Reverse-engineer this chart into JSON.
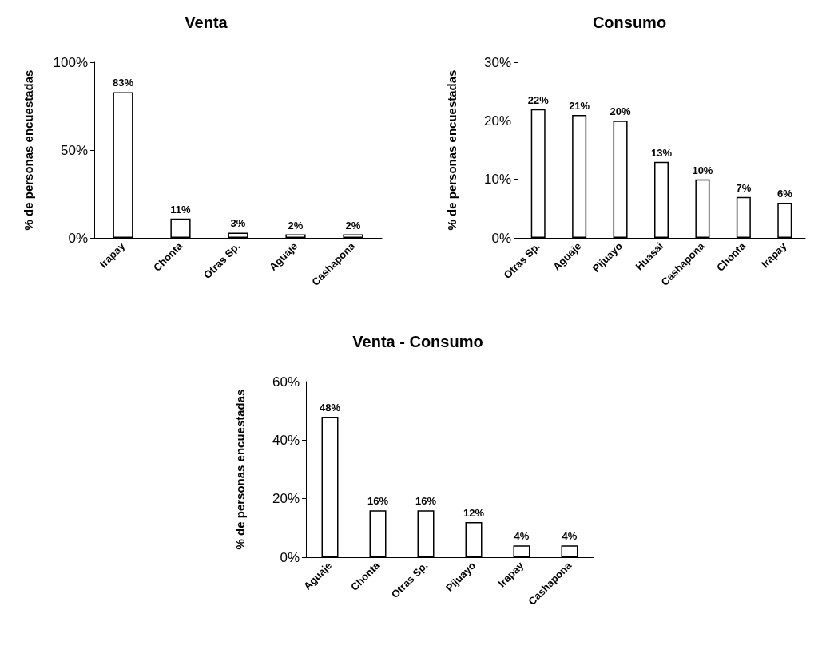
{
  "chart_data": [
    {
      "type": "bar",
      "title": "Venta",
      "ylabel": "% de personas encuestadas",
      "categories": [
        "Irapay",
        "Chonta",
        "Otras Sp.",
        "Aguaje",
        "Cashapona"
      ],
      "values": [
        83,
        11,
        3,
        2,
        2
      ],
      "value_labels": [
        "83%",
        "11%",
        "3%",
        "2%",
        "2%"
      ],
      "color": "#ffffff",
      "ylim": [
        0,
        100
      ],
      "yticks": [
        {
          "value": 0,
          "label": "0%"
        },
        {
          "value": 50,
          "label": "50%"
        },
        {
          "value": 100,
          "label": "100%"
        }
      ]
    },
    {
      "type": "bar",
      "title": "Consumo",
      "ylabel": "% de personas encuestadas",
      "categories": [
        "Otras Sp.",
        "Aguaje",
        "Pijuayo",
        "Huasai",
        "Cashapona",
        "Chonta",
        "Irapay"
      ],
      "values": [
        22,
        21,
        20,
        13,
        10,
        7,
        6
      ],
      "value_labels": [
        "22%",
        "21%",
        "20%",
        "13%",
        "10%",
        "7%",
        "6%"
      ],
      "color": "#ffffff",
      "ylim": [
        0,
        30
      ],
      "yticks": [
        {
          "value": 0,
          "label": "0%"
        },
        {
          "value": 10,
          "label": "10%"
        },
        {
          "value": 20,
          "label": "20%"
        },
        {
          "value": 30,
          "label": "30%"
        }
      ]
    },
    {
      "type": "bar",
      "title": "Venta - Consumo",
      "ylabel": "% de personas encuestadas",
      "categories": [
        "Aguaje",
        "Chonta",
        "Otras Sp.",
        "Pijuayo",
        "Irapay",
        "Cashapona"
      ],
      "values": [
        48,
        16,
        16,
        12,
        4,
        4
      ],
      "value_labels": [
        "48%",
        "16%",
        "16%",
        "12%",
        "4%",
        "4%"
      ],
      "color": "#ffffff",
      "ylim": [
        0,
        60
      ],
      "yticks": [
        {
          "value": 0,
          "label": "0%"
        },
        {
          "value": 20,
          "label": "20%"
        },
        {
          "value": 40,
          "label": "40%"
        },
        {
          "value": 60,
          "label": "60%"
        }
      ]
    }
  ]
}
